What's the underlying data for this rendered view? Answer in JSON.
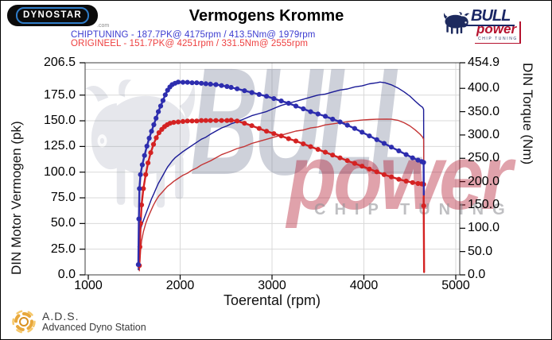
{
  "header": {
    "dynostar_logo_text": "DYNOSTAR",
    "dynostar_sub": ".com",
    "title": "Vermogens Kromme",
    "chiptuning_line": "CHIPTUNING - 187.7PK@ 4175rpm / 413.5Nm@ 1979rpm",
    "origineel_line": "ORIGINEEL  - 151.7PK@ 4251rpm / 331.5Nm@ 2555rpm",
    "bull_logo": {
      "bull": "BULL",
      "power": "power",
      "chip": "CHIP TUNING"
    }
  },
  "watermark": {
    "bull": "BULL",
    "power": "power",
    "chip": "CHIP TUNING"
  },
  "footer": {
    "ads_abbr": "A.D.S.",
    "ads_name": "Advanced Dyno Station"
  },
  "colors": {
    "header_blue": "#3c3cd0",
    "header_red": "#ee4040",
    "curve_blue_thick": "#2d2dae",
    "curve_blue_thin": "#1a1a96",
    "curve_red_thick": "#d42222",
    "curve_red_thin": "#c43434",
    "grid": "#d9d9d9",
    "border": "#3c3c3c",
    "logo_navy": "#1b2766",
    "logo_red": "#b5122e"
  },
  "chart_data": {
    "type": "line",
    "title": "Vermogens Kromme",
    "xlabel": "Toerental (rpm)",
    "ylabel_left": "DIN Motor Vermogen (pk)",
    "ylabel_right": "DIN Torque (Nm)",
    "xlim": [
      1000,
      5000
    ],
    "ylim_left": [
      0,
      206.5
    ],
    "ylim_right": [
      0,
      454.9
    ],
    "x_ticks": [
      1000,
      2000,
      3000,
      4000,
      5000
    ],
    "left_ticks": [
      0,
      25,
      50,
      75,
      100,
      125,
      150,
      175,
      206.5
    ],
    "right_ticks": [
      0,
      50,
      100,
      150,
      200,
      250,
      300,
      350,
      400,
      454.9
    ],
    "grid": true,
    "grid_power_step": 25,
    "legend_position": "none",
    "peaks": {
      "chiptuning": {
        "power_pk": 187.7,
        "power_rpm": 4175,
        "torque_nm": 413.5,
        "torque_rpm": 1979
      },
      "origineel": {
        "power_pk": 151.7,
        "power_rpm": 4251,
        "torque_nm": 331.5,
        "torque_rpm": 2555
      }
    },
    "series": [
      {
        "name": "CHIPTUNING vermogen (pk)",
        "axis": "left",
        "color": "#1a1a96",
        "width": 1.4,
        "markers": false,
        "points": [
          [
            1545,
            5
          ],
          [
            1551,
            26
          ],
          [
            1557,
            40
          ],
          [
            1568,
            44
          ],
          [
            1588,
            50
          ],
          [
            1612,
            56
          ],
          [
            1638,
            62
          ],
          [
            1663,
            68
          ],
          [
            1688,
            74
          ],
          [
            1713,
            79
          ],
          [
            1738,
            84
          ],
          [
            1763,
            89
          ],
          [
            1788,
            93
          ],
          [
            1813,
            97
          ],
          [
            1838,
            101
          ],
          [
            1863,
            105
          ],
          [
            1888,
            108
          ],
          [
            1913,
            111
          ],
          [
            1945,
            114
          ],
          [
            1979,
            116.5
          ],
          [
            2030,
            120
          ],
          [
            2080,
            123
          ],
          [
            2130,
            126
          ],
          [
            2180,
            129
          ],
          [
            2230,
            132
          ],
          [
            2280,
            134
          ],
          [
            2330,
            137
          ],
          [
            2390,
            140
          ],
          [
            2450,
            143
          ],
          [
            2510,
            145
          ],
          [
            2555,
            147
          ],
          [
            2620,
            149
          ],
          [
            2700,
            152
          ],
          [
            2780,
            155
          ],
          [
            2860,
            157
          ],
          [
            2940,
            159
          ],
          [
            3020,
            162
          ],
          [
            3100,
            165
          ],
          [
            3180,
            167
          ],
          [
            3260,
            169
          ],
          [
            3340,
            171
          ],
          [
            3420,
            173
          ],
          [
            3500,
            175
          ],
          [
            3580,
            176
          ],
          [
            3660,
            178
          ],
          [
            3740,
            180
          ],
          [
            3820,
            181
          ],
          [
            3900,
            183
          ],
          [
            3980,
            184
          ],
          [
            4060,
            186
          ],
          [
            4140,
            187
          ],
          [
            4175,
            187.7
          ],
          [
            4230,
            187
          ],
          [
            4300,
            185
          ],
          [
            4370,
            182
          ],
          [
            4440,
            178
          ],
          [
            4500,
            174
          ],
          [
            4560,
            169
          ],
          [
            4610,
            165
          ],
          [
            4640,
            163
          ],
          [
            4650,
            161
          ],
          [
            4653,
            76
          ]
        ]
      },
      {
        "name": "ORIGINEEL vermogen (pk)",
        "axis": "left",
        "color": "#c43434",
        "width": 1.4,
        "markers": false,
        "points": [
          [
            1556,
            4
          ],
          [
            1562,
            13
          ],
          [
            1570,
            24
          ],
          [
            1580,
            33
          ],
          [
            1600,
            42
          ],
          [
            1625,
            50
          ],
          [
            1650,
            56
          ],
          [
            1680,
            62
          ],
          [
            1710,
            68
          ],
          [
            1740,
            73
          ],
          [
            1770,
            77
          ],
          [
            1800,
            80
          ],
          [
            1830,
            83
          ],
          [
            1860,
            86
          ],
          [
            1890,
            88
          ],
          [
            1930,
            91
          ],
          [
            1979,
            94
          ],
          [
            2030,
            97
          ],
          [
            2080,
            99
          ],
          [
            2130,
            102
          ],
          [
            2180,
            104
          ],
          [
            2230,
            107
          ],
          [
            2280,
            109
          ],
          [
            2330,
            111
          ],
          [
            2390,
            114
          ],
          [
            2450,
            117
          ],
          [
            2510,
            119
          ],
          [
            2555,
            120.6
          ],
          [
            2620,
            123
          ],
          [
            2700,
            125
          ],
          [
            2780,
            128
          ],
          [
            2860,
            130
          ],
          [
            2940,
            132
          ],
          [
            3020,
            134
          ],
          [
            3100,
            136
          ],
          [
            3180,
            138
          ],
          [
            3260,
            140
          ],
          [
            3340,
            141
          ],
          [
            3420,
            143
          ],
          [
            3500,
            144
          ],
          [
            3580,
            146
          ],
          [
            3660,
            147
          ],
          [
            3740,
            148
          ],
          [
            3820,
            149
          ],
          [
            3900,
            150
          ],
          [
            3980,
            150.7
          ],
          [
            4060,
            151.2
          ],
          [
            4140,
            151.5
          ],
          [
            4251,
            151.7
          ],
          [
            4300,
            151.5
          ],
          [
            4370,
            150.5
          ],
          [
            4440,
            148
          ],
          [
            4500,
            145
          ],
          [
            4560,
            141
          ],
          [
            4610,
            137
          ],
          [
            4640,
            134
          ],
          [
            4650,
            132
          ],
          [
            4655,
            8
          ]
        ]
      },
      {
        "name": "ORIGINEEL koppel (Nm)",
        "axis": "right",
        "color": "#d42222",
        "width": 2.4,
        "markers": true,
        "markers_until": 4651,
        "points": [
          [
            1556,
            20
          ],
          [
            1562,
            60
          ],
          [
            1570,
            110
          ],
          [
            1580,
            150
          ],
          [
            1600,
            185
          ],
          [
            1625,
            215
          ],
          [
            1650,
            240
          ],
          [
            1680,
            262
          ],
          [
            1710,
            280
          ],
          [
            1740,
            294
          ],
          [
            1770,
            305
          ],
          [
            1800,
            312
          ],
          [
            1830,
            318
          ],
          [
            1860,
            322
          ],
          [
            1890,
            325
          ],
          [
            1930,
            327
          ],
          [
            1979,
            328
          ],
          [
            2030,
            329
          ],
          [
            2080,
            330
          ],
          [
            2130,
            330
          ],
          [
            2180,
            330
          ],
          [
            2230,
            331
          ],
          [
            2280,
            331
          ],
          [
            2330,
            331
          ],
          [
            2390,
            331
          ],
          [
            2450,
            331
          ],
          [
            2510,
            331
          ],
          [
            2555,
            331.5
          ],
          [
            2620,
            330
          ],
          [
            2700,
            325
          ],
          [
            2780,
            320
          ],
          [
            2860,
            314
          ],
          [
            2940,
            308
          ],
          [
            3020,
            303
          ],
          [
            3100,
            298
          ],
          [
            3180,
            292
          ],
          [
            3260,
            287
          ],
          [
            3340,
            281
          ],
          [
            3420,
            275
          ],
          [
            3500,
            269
          ],
          [
            3580,
            263
          ],
          [
            3660,
            257
          ],
          [
            3740,
            251
          ],
          [
            3820,
            245
          ],
          [
            3900,
            239
          ],
          [
            3980,
            233
          ],
          [
            4060,
            227
          ],
          [
            4140,
            221
          ],
          [
            4220,
            215
          ],
          [
            4300,
            210
          ],
          [
            4380,
            205
          ],
          [
            4460,
            201
          ],
          [
            4530,
            198
          ],
          [
            4590,
            196
          ],
          [
            4630,
            195
          ],
          [
            4650,
            194
          ],
          [
            4651,
            148
          ],
          [
            4655,
            6
          ]
        ]
      },
      {
        "name": "CHIPTUNING koppel (Nm)",
        "axis": "right",
        "color": "#2d2dae",
        "width": 2.4,
        "markers": true,
        "markers_until": 4650,
        "points": [
          [
            1545,
            22
          ],
          [
            1551,
            120
          ],
          [
            1557,
            185
          ],
          [
            1568,
            215
          ],
          [
            1588,
            236
          ],
          [
            1612,
            256
          ],
          [
            1638,
            276
          ],
          [
            1663,
            293
          ],
          [
            1688,
            308
          ],
          [
            1713,
            322
          ],
          [
            1738,
            336
          ],
          [
            1763,
            350
          ],
          [
            1788,
            362
          ],
          [
            1813,
            374
          ],
          [
            1838,
            386
          ],
          [
            1863,
            396
          ],
          [
            1888,
            403
          ],
          [
            1913,
            408
          ],
          [
            1945,
            411
          ],
          [
            1979,
            413.5
          ],
          [
            2030,
            413
          ],
          [
            2080,
            413
          ],
          [
            2130,
            412
          ],
          [
            2180,
            412
          ],
          [
            2230,
            411
          ],
          [
            2280,
            410
          ],
          [
            2330,
            409
          ],
          [
            2390,
            408
          ],
          [
            2450,
            406
          ],
          [
            2510,
            404
          ],
          [
            2555,
            402
          ],
          [
            2620,
            399
          ],
          [
            2700,
            395
          ],
          [
            2780,
            391
          ],
          [
            2860,
            387
          ],
          [
            2940,
            383
          ],
          [
            3020,
            378
          ],
          [
            3100,
            373
          ],
          [
            3180,
            368
          ],
          [
            3260,
            362
          ],
          [
            3340,
            356
          ],
          [
            3420,
            350
          ],
          [
            3500,
            345
          ],
          [
            3580,
            340
          ],
          [
            3660,
            334
          ],
          [
            3740,
            328
          ],
          [
            3820,
            321
          ],
          [
            3900,
            314
          ],
          [
            3980,
            306
          ],
          [
            4060,
            298
          ],
          [
            4140,
            290
          ],
          [
            4220,
            282
          ],
          [
            4300,
            274
          ],
          [
            4380,
            266
          ],
          [
            4460,
            258
          ],
          [
            4530,
            251
          ],
          [
            4590,
            246
          ],
          [
            4630,
            243
          ],
          [
            4650,
            241
          ],
          [
            4652,
            172
          ]
        ]
      }
    ]
  }
}
